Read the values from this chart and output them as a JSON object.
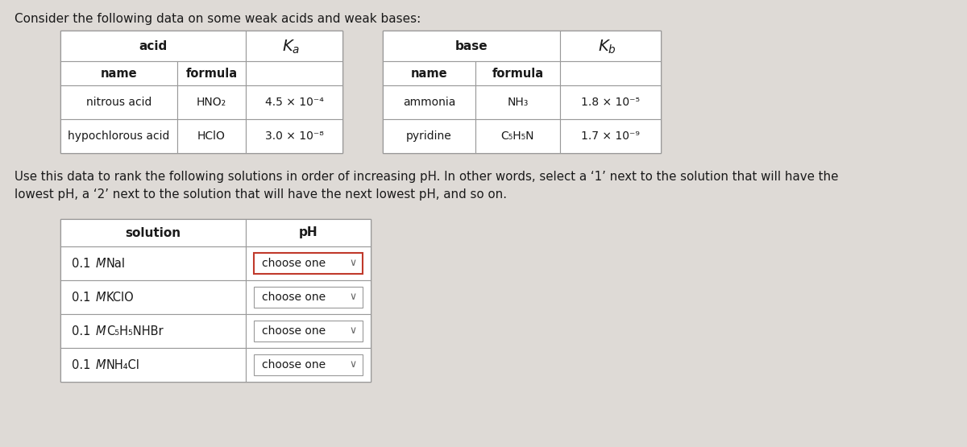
{
  "title": "Consider the following data on some weak acids and weak bases:",
  "bg_color": "#dedad6",
  "text_color": "#1a1a1a",
  "title_fontsize": 11.0,
  "acid_table": {
    "header_col1": "acid",
    "subheader": [
      "name",
      "formula"
    ],
    "rows": [
      [
        "nitrous acid",
        "HNO₂",
        "4.5 × 10⁻⁴"
      ],
      [
        "hypochlorous acid",
        "HClO",
        "3.0 × 10⁻⁸"
      ]
    ]
  },
  "base_table": {
    "header_col1": "base",
    "subheader": [
      "name",
      "formula"
    ],
    "rows": [
      [
        "ammonia",
        "NH₃",
        "1.8 × 10⁻⁵"
      ],
      [
        "pyridine",
        "C₅H₅N",
        "1.7 × 10⁻⁹"
      ]
    ]
  },
  "instruction_line1": "Use this data to rank the following solutions in order of increasing pH. In other words, select a ‘1’ next to the solution that will have the",
  "instruction_line2": "lowest pH, a ‘2’ next to the solution that will have the next lowest pH, and so on.",
  "solution_table": {
    "header": [
      "solution",
      "pH"
    ],
    "rows": [
      "0.1 ℳ NaI",
      "0.1 ℳ KClO",
      "0.1 ℳ C₅H₅NHBr",
      "0.1 ℳ NH₄Cl"
    ],
    "highlight_row": 0
  }
}
